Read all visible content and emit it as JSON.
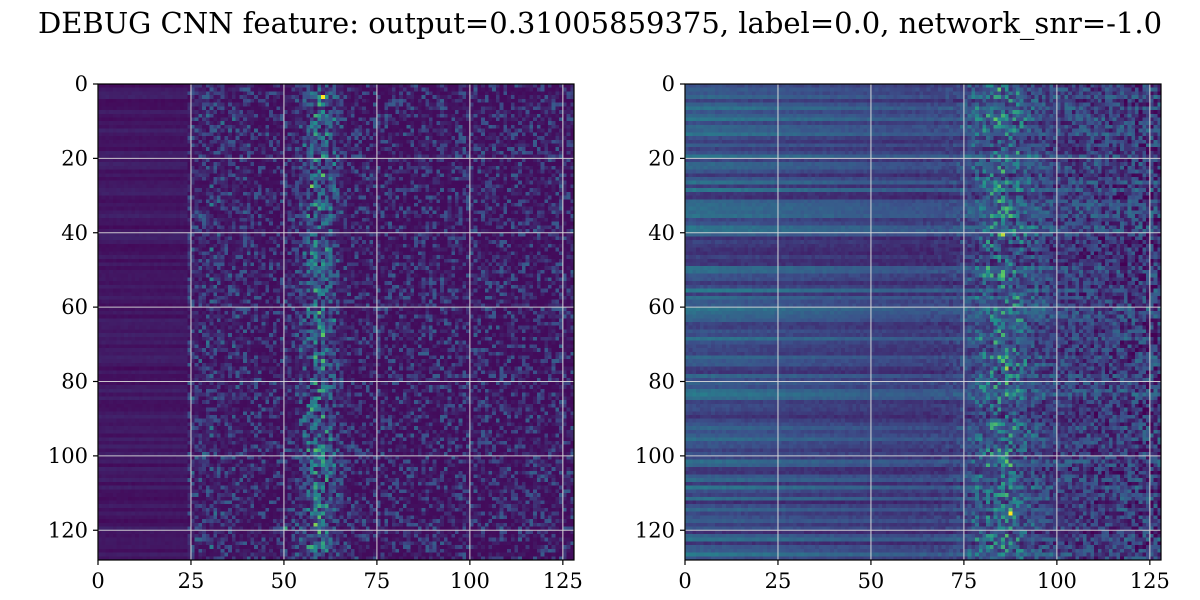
{
  "figure": {
    "title": "DEBUG CNN feature: output=0.31005859375, label=0.0, network_snr=-1.0"
  },
  "chart_data": [
    {
      "type": "heatmap",
      "title": "",
      "xlabel": "",
      "ylabel": "",
      "xlim": [
        0,
        128
      ],
      "ylim": [
        128,
        0
      ],
      "xticks": [
        0,
        25,
        50,
        75,
        100,
        125
      ],
      "yticks": [
        0,
        20,
        40,
        60,
        80,
        100,
        120
      ],
      "grid": true,
      "colormap": "viridis",
      "colorscale": [
        "#440154",
        "#3b528b",
        "#21918c",
        "#5ec962",
        "#fde725"
      ],
      "rows": 128,
      "cols": 128,
      "pattern": "left region x 0-23 dim, noise from x 25, bright vertical band near x 55-63",
      "hotspots": [
        {
          "x": 60,
          "y": 3,
          "value": 1.0
        },
        {
          "x": 57,
          "y": 27,
          "value": 0.8
        },
        {
          "x": 59,
          "y": 33,
          "value": 0.6
        },
        {
          "x": 56,
          "y": 98,
          "value": 0.6
        },
        {
          "x": 50,
          "y": 119,
          "value": 0.6
        }
      ]
    },
    {
      "type": "heatmap",
      "title": "",
      "xlabel": "",
      "ylabel": "",
      "xlim": [
        0,
        128
      ],
      "ylim": [
        128,
        0
      ],
      "xticks": [
        0,
        25,
        50,
        75,
        100,
        125
      ],
      "yticks": [
        0,
        20,
        40,
        60,
        80,
        100,
        120
      ],
      "grid": true,
      "colormap": "viridis",
      "colorscale": [
        "#440154",
        "#3b528b",
        "#21918c",
        "#5ec962",
        "#fde725"
      ],
      "rows": 128,
      "cols": 128,
      "pattern": "horizontal row striping at left, increasing noise toward right, bright cluster near x 78-92",
      "hotspots": [
        {
          "x": 87,
          "y": 115,
          "value": 1.0
        },
        {
          "x": 85,
          "y": 40,
          "value": 0.9
        },
        {
          "x": 86,
          "y": 76,
          "value": 0.85
        },
        {
          "x": 84,
          "y": 31,
          "value": 0.7
        }
      ]
    }
  ]
}
